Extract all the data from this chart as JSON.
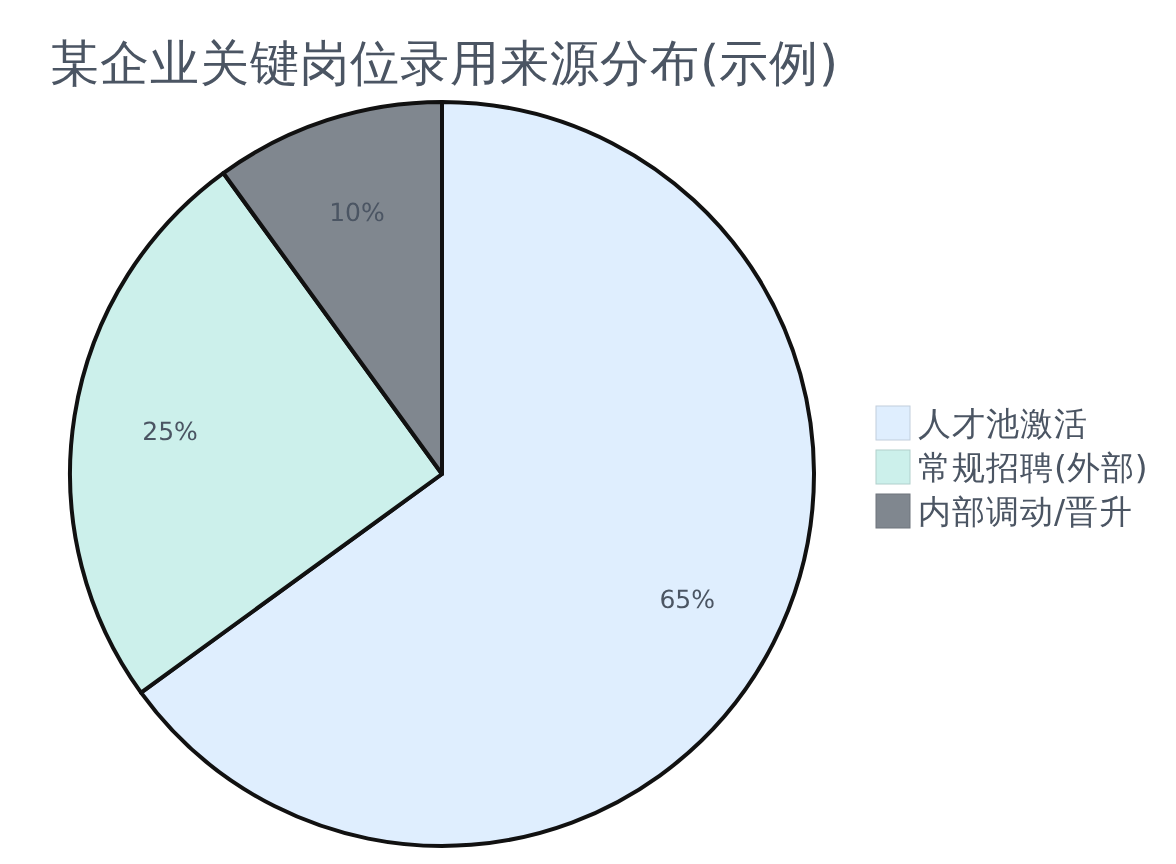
{
  "chart_data": {
    "type": "pie",
    "title": "某企业关键岗位录用来源分布(示例)",
    "categories": [
      "人才池激活",
      "常规招聘(外部)",
      "内部调动/晋升"
    ],
    "values": [
      65,
      25,
      10
    ],
    "colors": [
      "#dfeefe",
      "#ccf0eb",
      "#80878f"
    ],
    "value_labels": [
      "65%",
      "25%",
      "10%"
    ],
    "legend": "right"
  }
}
